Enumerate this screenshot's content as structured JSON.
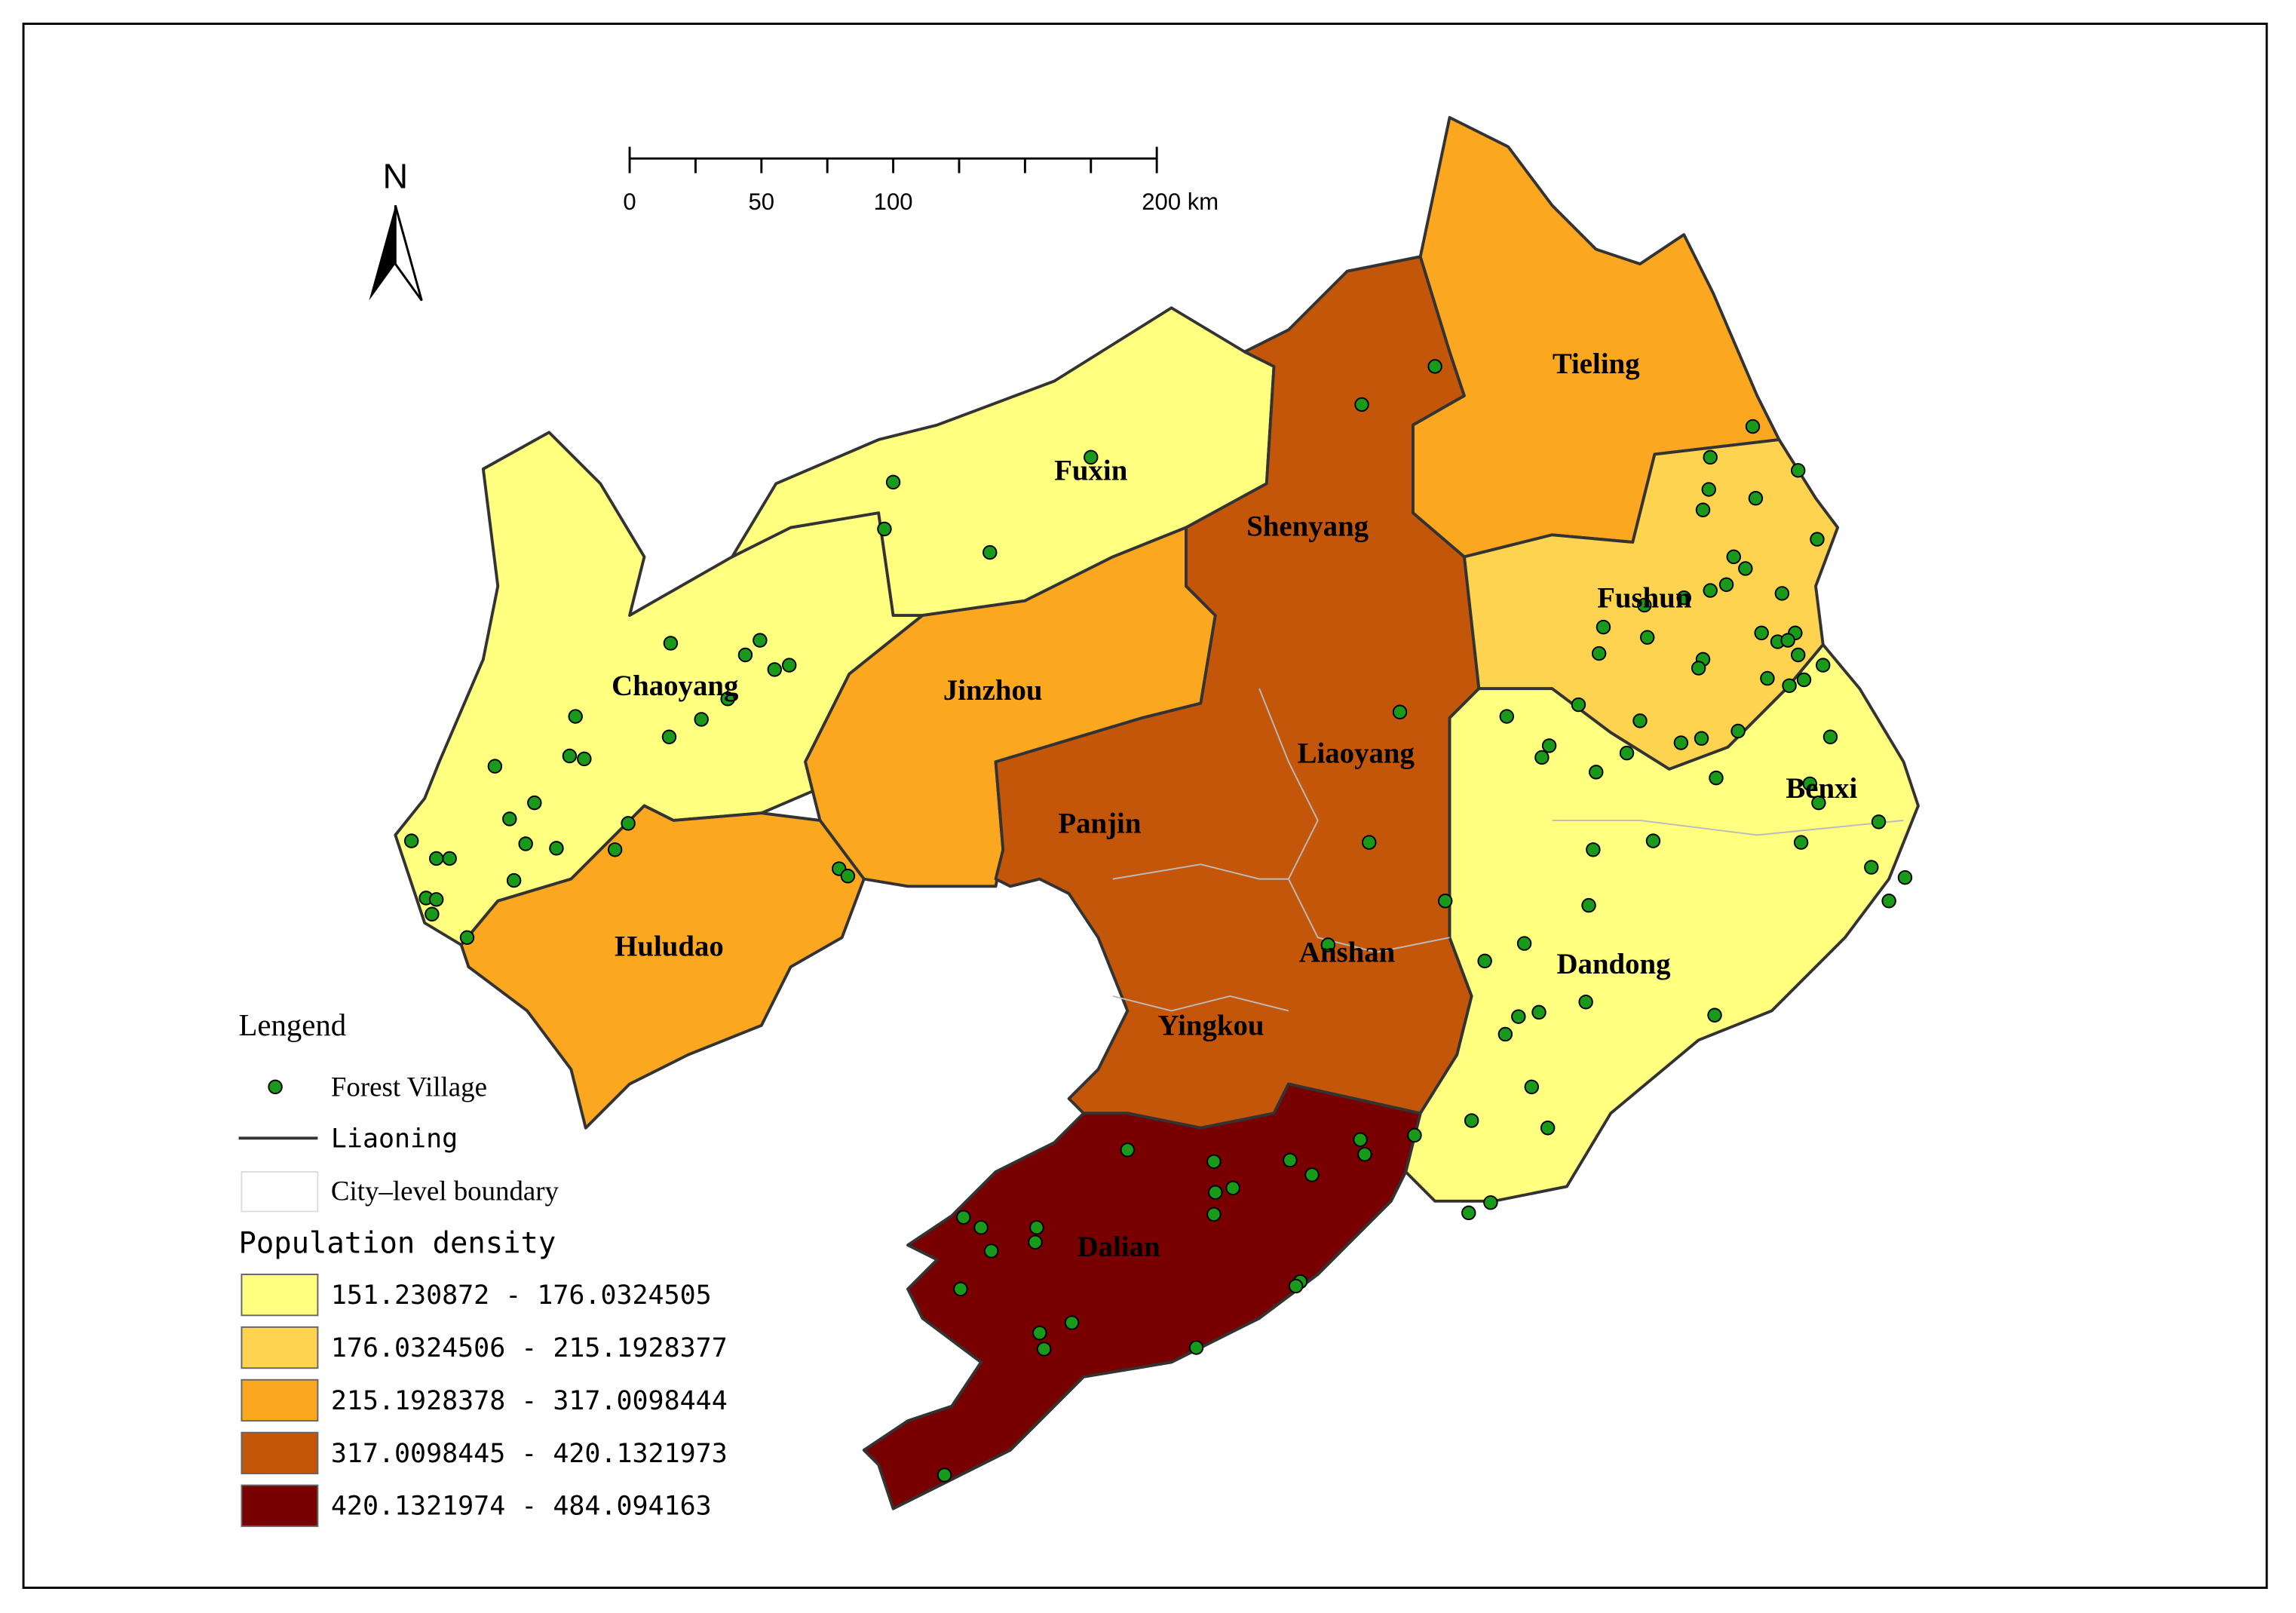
{
  "north": "N",
  "scale_bar": {
    "labels": [
      "0",
      "50",
      "100",
      "200 km"
    ]
  },
  "cities": [
    "Tieling",
    "Fuxin",
    "Shenyang",
    "Fushun",
    "Chaoyang",
    "Jinzhou",
    "Liaoyang",
    "Benxi",
    "Panjin",
    "Huludao",
    "Anshan",
    "Dandong",
    "Yingkou",
    "Dalian"
  ],
  "legend": {
    "title": "Lengend",
    "items": [
      "Forest Village",
      "Liaoning",
      "City–level boundary"
    ],
    "density_title": "Population density",
    "classes": [
      {
        "label": "151.230872 - 176.0324505",
        "color": "#ffff80"
      },
      {
        "label": "176.0324506 - 215.1928377",
        "color": "#fed34f"
      },
      {
        "label": "215.1928378 - 317.0098444",
        "color": "#fba71f"
      },
      {
        "label": "317.0098445 - 420.1321973",
        "color": "#c35609"
      },
      {
        "label": "420.1321974 - 484.094163",
        "color": "#780000"
      }
    ]
  }
}
